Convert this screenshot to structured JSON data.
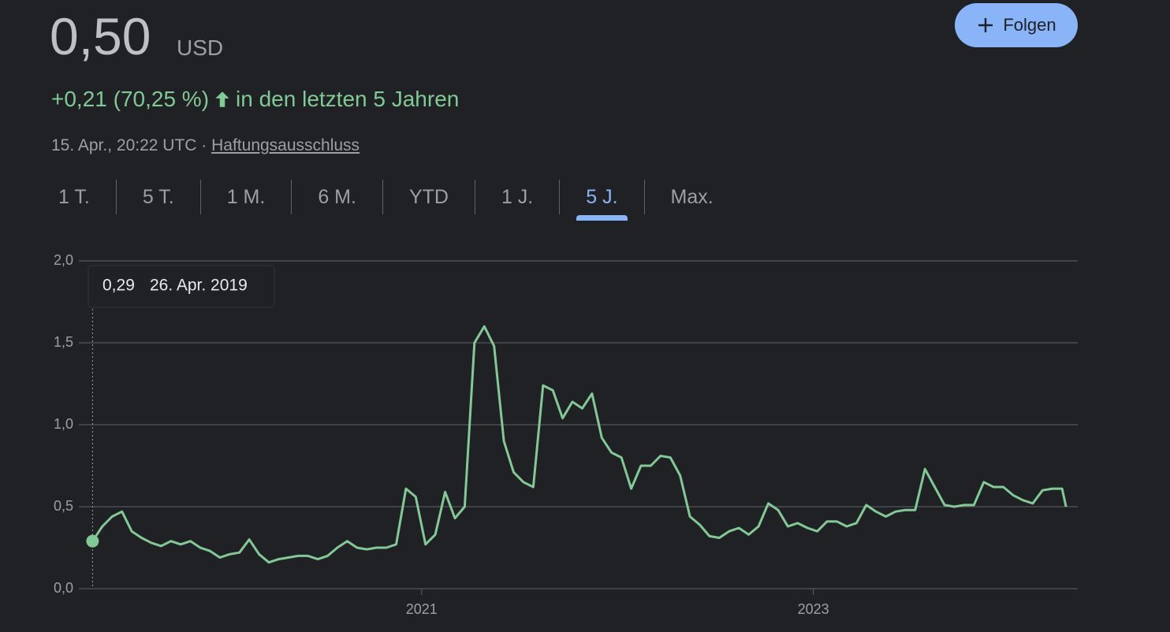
{
  "header": {
    "price": "0,50",
    "currency": "USD",
    "change": "+0,21 (70,25 %)",
    "change_period": "in den letzten 5 Jahren",
    "timestamp": "15. Apr., 20:22 UTC",
    "separator": "·",
    "disclaimer": "Haftungsausschluss"
  },
  "follow_button": {
    "label": "Folgen"
  },
  "range_tabs": {
    "labels": [
      "1 T.",
      "5 T.",
      "1 M.",
      "6 M.",
      "YTD",
      "1 J.",
      "5 J.",
      "Max."
    ],
    "selected": 6
  },
  "chart_data": {
    "type": "line",
    "color": "#81c995",
    "grid": true,
    "x": [
      2019.32,
      2019.37,
      2019.42,
      2019.47,
      2019.52,
      2019.57,
      2019.62,
      2019.67,
      2019.72,
      2019.77,
      2019.82,
      2019.87,
      2019.92,
      2019.97,
      2020.02,
      2020.07,
      2020.12,
      2020.17,
      2020.22,
      2020.27,
      2020.32,
      2020.37,
      2020.42,
      2020.47,
      2020.52,
      2020.57,
      2020.62,
      2020.67,
      2020.72,
      2020.77,
      2020.82,
      2020.87,
      2020.92,
      2020.97,
      2021.02,
      2021.07,
      2021.12,
      2021.17,
      2021.22,
      2021.27,
      2021.32,
      2021.37,
      2021.42,
      2021.47,
      2021.52,
      2021.57,
      2021.62,
      2021.67,
      2021.72,
      2021.77,
      2021.82,
      2021.87,
      2021.92,
      2021.97,
      2022.02,
      2022.07,
      2022.12,
      2022.17,
      2022.22,
      2022.27,
      2022.32,
      2022.37,
      2022.42,
      2022.47,
      2022.52,
      2022.57,
      2022.62,
      2022.67,
      2022.72,
      2022.77,
      2022.82,
      2022.87,
      2022.92,
      2022.97,
      2023.02,
      2023.07,
      2023.12,
      2023.17,
      2023.22,
      2023.27,
      2023.32,
      2023.37,
      2023.42,
      2023.47,
      2023.52,
      2023.57,
      2023.62,
      2023.67,
      2023.72,
      2023.77,
      2023.82,
      2023.87,
      2023.92,
      2023.97,
      2024.02,
      2024.07,
      2024.12,
      2024.17,
      2024.22,
      2024.27,
      2024.29
    ],
    "values": [
      0.29,
      0.38,
      0.44,
      0.47,
      0.35,
      0.31,
      0.28,
      0.26,
      0.29,
      0.27,
      0.29,
      0.25,
      0.23,
      0.19,
      0.21,
      0.22,
      0.3,
      0.21,
      0.16,
      0.18,
      0.19,
      0.2,
      0.2,
      0.18,
      0.2,
      0.25,
      0.29,
      0.25,
      0.24,
      0.25,
      0.25,
      0.27,
      0.61,
      0.56,
      0.27,
      0.33,
      0.59,
      0.43,
      0.5,
      1.5,
      1.6,
      1.48,
      0.9,
      0.71,
      0.65,
      0.62,
      1.24,
      1.21,
      1.04,
      1.14,
      1.1,
      1.19,
      0.92,
      0.83,
      0.8,
      0.61,
      0.75,
      0.75,
      0.81,
      0.8,
      0.69,
      0.44,
      0.39,
      0.32,
      0.31,
      0.35,
      0.37,
      0.33,
      0.38,
      0.52,
      0.48,
      0.38,
      0.4,
      0.37,
      0.35,
      0.41,
      0.41,
      0.38,
      0.4,
      0.51,
      0.47,
      0.44,
      0.47,
      0.48,
      0.48,
      0.73,
      0.62,
      0.51,
      0.5,
      0.51,
      0.51,
      0.65,
      0.62,
      0.62,
      0.57,
      0.54,
      0.52,
      0.6,
      0.61,
      0.61,
      0.5
    ],
    "xlim": [
      2019.25,
      2024.35
    ],
    "xticks": [
      2021,
      2023
    ],
    "ylim": [
      0,
      2
    ],
    "yticks": [
      {
        "value": 0,
        "label": "0,0"
      },
      {
        "value": 0.5,
        "label": "0,5"
      },
      {
        "value": 1,
        "label": "1,0"
      },
      {
        "value": 1.5,
        "label": "1,5"
      },
      {
        "value": 2,
        "label": "2,0"
      }
    ],
    "tooltip": {
      "value": 0.29,
      "label": "0,29",
      "date": "26. Apr. 2019"
    }
  }
}
